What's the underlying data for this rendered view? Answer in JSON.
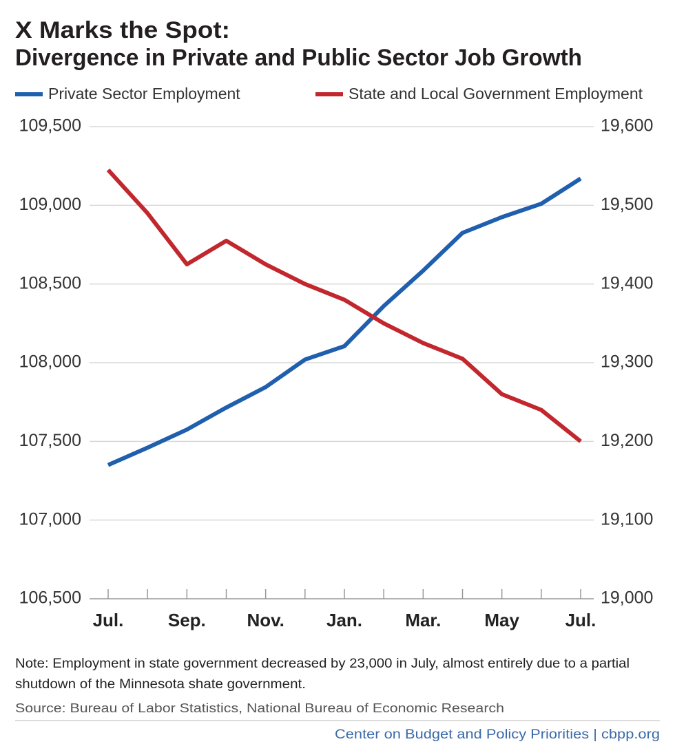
{
  "chart_data": {
    "type": "line",
    "title": "X Marks the Spot:",
    "subtitle": "Divergence in Private and Public Sector Job Growth",
    "categories": [
      "Jul.",
      null,
      "Sep.",
      null,
      "Nov.",
      null,
      "Jan.",
      null,
      "Mar.",
      null,
      "May",
      null,
      "Jul."
    ],
    "series": [
      {
        "name": "Private Sector Employment",
        "color": "#1f5fae",
        "values": [
          107350,
          107460,
          107575,
          107715,
          107845,
          108020,
          108105,
          108360,
          108585,
          108825,
          108925,
          109010,
          109170
        ]
      },
      {
        "name": "State and Local Government Employment",
        "color": "#c1272d",
        "axis": "y2",
        "values": [
          19545,
          19490,
          19425,
          19455,
          19425,
          19400,
          19380,
          19350,
          19325,
          19305,
          19260,
          19240,
          19200
        ]
      }
    ],
    "ylim": [
      106500,
      109500
    ],
    "yticks": [
      {
        "value": 106500,
        "label": "106,500"
      },
      {
        "value": 107000,
        "label": "107,000"
      },
      {
        "value": 107500,
        "label": "107,500"
      },
      {
        "value": 108000,
        "label": "108,000"
      },
      {
        "value": 108500,
        "label": "108,500"
      },
      {
        "value": 109000,
        "label": "109,000"
      },
      {
        "value": 109500,
        "label": "109,500"
      }
    ],
    "y2lim": [
      19000,
      19600
    ],
    "y2ticks": [
      {
        "value": 19000,
        "label": "19,000"
      },
      {
        "value": 19100,
        "label": "19,100"
      },
      {
        "value": 19200,
        "label": "19,200"
      },
      {
        "value": 19300,
        "label": "19,300"
      },
      {
        "value": 19400,
        "label": "19,400"
      },
      {
        "value": 19500,
        "label": "19,500"
      },
      {
        "value": 19600,
        "label": "19,600"
      }
    ],
    "grid": true,
    "legend": "top",
    "note": "Note: Employment in state government decreased by 23,000 in July, almost entirely due to a partial",
    "note_line2": "shutdown of the Minnesota shate government.",
    "source": "Source: Bureau of Labor Statistics, National Bureau of Economic Research",
    "credit": "Center on Budget and Policy Priorities | cbpp.org"
  }
}
